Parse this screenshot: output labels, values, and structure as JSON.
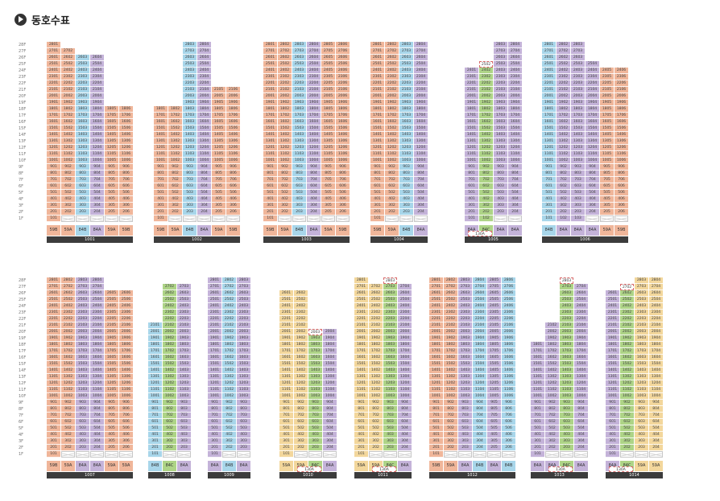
{
  "page": {
    "title": "동호수표"
  },
  "colors": {
    "59A": "#f0b69a",
    "59B": "#f0b69a",
    "84A": "#c4b3d9",
    "84B": "#a8d6ea",
    "84C": "#aed487",
    "59A_alt": "#f3d79c",
    "dark": "#3c3c3c"
  },
  "floor_labels": [
    "28F",
    "27F",
    "26F",
    "25F",
    "24F",
    "23F",
    "22F",
    "21F",
    "20F",
    "19F",
    "18F",
    "17F",
    "16F",
    "15F",
    "14F",
    "13F",
    "12F",
    "11F",
    "10F",
    "9F",
    "8F",
    "7F",
    "6F",
    "5F",
    "4F",
    "3F",
    "2F",
    "1F"
  ],
  "buildings": [
    {
      "name": "1001",
      "row": 0,
      "columns": [
        {
          "line": "01",
          "type": "59B",
          "top": 28
        },
        {
          "line": "02",
          "type": "59A",
          "top": 27
        },
        {
          "line": "03",
          "type": "84B",
          "top": 26
        },
        {
          "line": "04",
          "type": "84A",
          "top": 26
        },
        {
          "line": "05",
          "type": "59A",
          "top": 18
        },
        {
          "line": "06",
          "type": "59B",
          "top": 18
        }
      ],
      "pilotis_cols": [
        1,
        2,
        3,
        4,
        5
      ],
      "types": [
        "59B",
        "59A",
        "84B",
        "84A",
        "59A",
        "59B"
      ]
    },
    {
      "name": "1002",
      "row": 0,
      "columns": [
        {
          "line": "01",
          "type": "59B",
          "top": 18
        },
        {
          "line": "02",
          "type": "59A",
          "top": 18
        },
        {
          "line": "03",
          "type": "84B",
          "top": 28
        },
        {
          "line": "04",
          "type": "84A",
          "top": 28
        },
        {
          "line": "05",
          "type": "59A",
          "top": 21
        },
        {
          "line": "06",
          "type": "59B",
          "top": 21
        }
      ],
      "pilotis_cols": [
        1,
        2,
        3,
        4,
        5
      ],
      "types": [
        "59B",
        "59A",
        "84B",
        "84A",
        "59A",
        "59B"
      ]
    },
    {
      "name": "1003",
      "row": 0,
      "columns": [
        {
          "line": "01",
          "type": "59B",
          "top": 28
        },
        {
          "line": "02",
          "type": "59A",
          "top": 28
        },
        {
          "line": "03",
          "type": "84B",
          "top": 28
        },
        {
          "line": "04",
          "type": "84A",
          "top": 28
        },
        {
          "line": "05",
          "type": "59A",
          "top": 28
        },
        {
          "line": "06",
          "type": "59B",
          "top": 28
        }
      ],
      "pilotis_cols": [
        1,
        2,
        3,
        4,
        5
      ],
      "types": [
        "59B",
        "59A",
        "84B",
        "84A",
        "59A",
        "59B"
      ]
    },
    {
      "name": "1004",
      "row": 0,
      "columns": [
        {
          "line": "01",
          "type": "59B",
          "top": 28
        },
        {
          "line": "02",
          "type": "59A",
          "top": 28
        },
        {
          "line": "03",
          "type": "84B",
          "top": 28
        },
        {
          "line": "04",
          "type": "84A",
          "top": 28
        }
      ],
      "pilotis_cols": [
        1,
        2,
        3
      ],
      "types": [
        "59B",
        "59A",
        "84B",
        "84A"
      ]
    },
    {
      "name": "1005",
      "row": 0,
      "columns": [
        {
          "line": "01",
          "type": "84A",
          "top": 24
        },
        {
          "line": "02",
          "type": "84C",
          "top": 24,
          "ghost_top": 25
        },
        {
          "line": "03",
          "type": "84A",
          "top": 28
        },
        {
          "line": "04",
          "type": "84A",
          "top": 28
        }
      ],
      "pilotis_cols": [
        2,
        3
      ],
      "types": [
        "84A",
        "84C",
        "84A",
        "84A"
      ],
      "sub_type": "130A"
    },
    {
      "name": "1006",
      "row": 0,
      "columns": [
        {
          "line": "01",
          "type": "84B",
          "top": 28
        },
        {
          "line": "02",
          "type": "84A",
          "top": 28
        },
        {
          "line": "03",
          "type": "84A",
          "top": 28
        },
        {
          "line": "04",
          "type": "84A",
          "top": 25
        },
        {
          "line": "05",
          "type": "59A",
          "top": 24
        },
        {
          "line": "06",
          "type": "59B",
          "top": 24
        }
      ],
      "pilotis_cols": [
        3,
        4,
        5
      ],
      "types": [
        "84B",
        "84A",
        "84A",
        "84A",
        "59A",
        "59B"
      ]
    },
    {
      "name": "1007",
      "row": 1,
      "columns": [
        {
          "line": "01",
          "type": "59B",
          "top": 28
        },
        {
          "line": "02",
          "type": "59A",
          "top": 28
        },
        {
          "line": "03",
          "type": "84A",
          "top": 28
        },
        {
          "line": "04",
          "type": "84A",
          "top": 28
        },
        {
          "line": "05",
          "type": "59A",
          "top": 26
        },
        {
          "line": "06",
          "type": "59A",
          "top": 26
        }
      ],
      "pilotis_cols": [
        1,
        2,
        3,
        4,
        5
      ],
      "types": [
        "59B",
        "59A",
        "84A",
        "84A",
        "59A",
        "59A"
      ]
    },
    {
      "name": "1008",
      "row": 1,
      "columns": [
        {
          "line": "01",
          "type": "84B",
          "top": 21
        },
        {
          "line": "02",
          "type": "84C",
          "top": 27
        },
        {
          "line": "03",
          "type": "84A",
          "top": 27
        }
      ],
      "pilotis_cols": [
        1,
        2
      ],
      "types": [
        "84B",
        "84C",
        "84A"
      ]
    },
    {
      "name": "1009",
      "row": 1,
      "columns": [
        {
          "line": "01",
          "type": "84A",
          "top": 28
        },
        {
          "line": "02",
          "type": "84B",
          "top": 28
        },
        {
          "line": "03",
          "type": "84A",
          "top": 28
        }
      ],
      "pilotis_cols": [
        1,
        2
      ],
      "types": [
        "84A",
        "84B",
        "84A"
      ]
    },
    {
      "name": "1010",
      "row": 1,
      "columns": [
        {
          "line": "01",
          "type": "59A",
          "top": 26
        },
        {
          "line": "02",
          "type": "59A",
          "top": 26
        },
        {
          "line": "03",
          "type": "84C",
          "top": 19,
          "ghost_top": 20
        },
        {
          "line": "04",
          "type": "84A",
          "top": 20
        }
      ],
      "pilotis_cols": [
        1,
        2,
        3
      ],
      "types": [
        "59A",
        "59A",
        "84C",
        "84A"
      ],
      "sub_type": "130A"
    },
    {
      "name": "1011",
      "row": 1,
      "columns": [
        {
          "line": "01",
          "type": "59A",
          "top": 28
        },
        {
          "line": "02",
          "type": "59A",
          "top": 27
        },
        {
          "line": "03",
          "type": "84C",
          "top": 27,
          "ghost_top": 28
        },
        {
          "line": "04",
          "type": "84A",
          "top": 27
        }
      ],
      "pilotis_cols": [
        1,
        2,
        3
      ],
      "types": [
        "59A",
        "59A",
        "84C",
        "84A"
      ],
      "sub_type": "130A"
    },
    {
      "name": "1012",
      "row": 1,
      "columns": [
        {
          "line": "01",
          "type": "59B",
          "top": 28
        },
        {
          "line": "02",
          "type": "59A",
          "top": 28
        },
        {
          "line": "03",
          "type": "84A",
          "top": 28
        },
        {
          "line": "04",
          "type": "84B",
          "top": 28
        },
        {
          "line": "05",
          "type": "84A",
          "top": 28
        },
        {
          "line": "06",
          "type": "84B",
          "top": 28
        }
      ],
      "pilotis_cols": [
        1,
        2,
        3,
        4,
        5
      ],
      "types": [
        "59B",
        "59A",
        "84A",
        "84B",
        "84A",
        "84B"
      ]
    },
    {
      "name": "1013",
      "row": 1,
      "columns": [
        {
          "line": "01",
          "type": "84A",
          "top": 18
        },
        {
          "line": "02",
          "type": "84A",
          "top": 21
        },
        {
          "line": "03",
          "type": "84C",
          "top": 27,
          "ghost_top": 28
        },
        {
          "line": "04",
          "type": "84A",
          "top": 27
        }
      ],
      "pilotis_cols": [
        1,
        2,
        3
      ],
      "types": [
        "84A",
        "84A",
        "84C",
        "84A"
      ],
      "sub_type": "130A"
    },
    {
      "name": "1014",
      "row": 1,
      "columns": [
        {
          "line": "01",
          "type": "84A",
          "top": 26
        },
        {
          "line": "02",
          "type": "84C",
          "top": 26,
          "ghost_top": 27
        },
        {
          "line": "03",
          "type": "59A",
          "top": 28
        },
        {
          "line": "04",
          "type": "59A",
          "top": 28
        }
      ],
      "pilotis_cols": [
        1,
        2,
        3
      ],
      "types": [
        "84A",
        "84C",
        "59A",
        "59A"
      ],
      "sub_type": "130A"
    }
  ]
}
